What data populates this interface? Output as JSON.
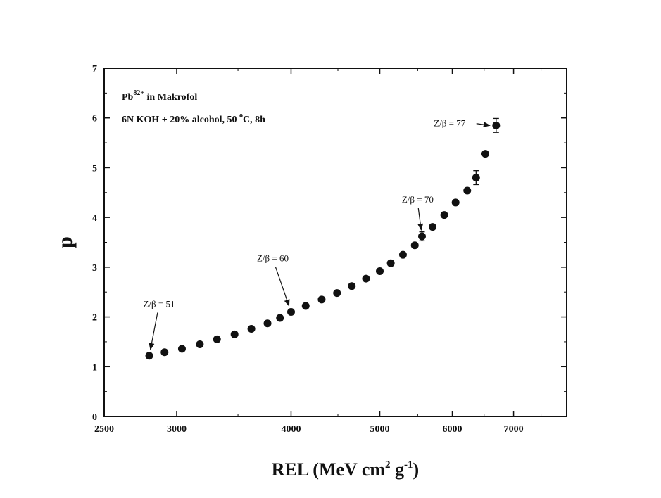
{
  "chart_data": {
    "type": "scatter",
    "x_scale": "log",
    "xlim": [
      2500,
      8000
    ],
    "ylim": [
      0,
      7
    ],
    "x_ticks": [
      2500,
      3000,
      4000,
      5000,
      6000,
      7000
    ],
    "x_tick_labels": [
      "2500",
      "3000",
      "4000",
      "5000",
      "6000",
      "7000"
    ],
    "y_ticks": [
      0,
      1,
      2,
      3,
      4,
      5,
      6,
      7
    ],
    "y_tick_labels": [
      "0",
      "1",
      "2",
      "3",
      "4",
      "5",
      "6",
      "7"
    ],
    "ylabel": "p",
    "xlabel": {
      "base": "REL (MeV cm",
      "sup1": "2",
      "mid": " g",
      "sup2": "-1",
      "end": ")"
    },
    "grid": false,
    "info_line1": {
      "base": "Pb",
      "sup": "82+",
      "rest": " in Makrofol"
    },
    "info_line2": {
      "base": "6N KOH + 20% alcohol, 50 ",
      "sup": "o",
      "rest": "C, 8h"
    },
    "points": [
      {
        "x": 2800,
        "y": 1.22
      },
      {
        "x": 2910,
        "y": 1.29
      },
      {
        "x": 3040,
        "y": 1.36
      },
      {
        "x": 3180,
        "y": 1.45
      },
      {
        "x": 3320,
        "y": 1.55
      },
      {
        "x": 3470,
        "y": 1.65
      },
      {
        "x": 3620,
        "y": 1.76
      },
      {
        "x": 3770,
        "y": 1.87
      },
      {
        "x": 3890,
        "y": 1.98
      },
      {
        "x": 4000,
        "y": 2.1
      },
      {
        "x": 4150,
        "y": 2.22
      },
      {
        "x": 4320,
        "y": 2.35
      },
      {
        "x": 4490,
        "y": 2.48
      },
      {
        "x": 4660,
        "y": 2.62
      },
      {
        "x": 4830,
        "y": 2.77
      },
      {
        "x": 5000,
        "y": 2.92
      },
      {
        "x": 5140,
        "y": 3.08
      },
      {
        "x": 5300,
        "y": 3.25
      },
      {
        "x": 5460,
        "y": 3.44
      },
      {
        "x": 5560,
        "y": 3.62,
        "err": 0.09
      },
      {
        "x": 5710,
        "y": 3.81
      },
      {
        "x": 5880,
        "y": 4.05
      },
      {
        "x": 6050,
        "y": 4.3
      },
      {
        "x": 6230,
        "y": 4.54
      },
      {
        "x": 6370,
        "y": 4.8,
        "err": 0.14
      },
      {
        "x": 6520,
        "y": 5.28
      },
      {
        "x": 6700,
        "y": 5.85,
        "err": 0.14
      }
    ],
    "annotations": [
      {
        "label": "Z/β = 51",
        "text_x": 2870,
        "text_y": 2.2,
        "to_x": 2800,
        "to_y": 1.22
      },
      {
        "label": "Z/β = 60",
        "text_x": 3820,
        "text_y": 3.12,
        "to_x": 4000,
        "to_y": 2.1
      },
      {
        "label": "Z/β = 70",
        "text_x": 5500,
        "text_y": 4.3,
        "to_x": 5560,
        "to_y": 3.62
      },
      {
        "label": "Z/β = 77",
        "text_x": 5960,
        "text_y": 5.83,
        "to_x": 6700,
        "to_y": 5.85
      }
    ]
  }
}
